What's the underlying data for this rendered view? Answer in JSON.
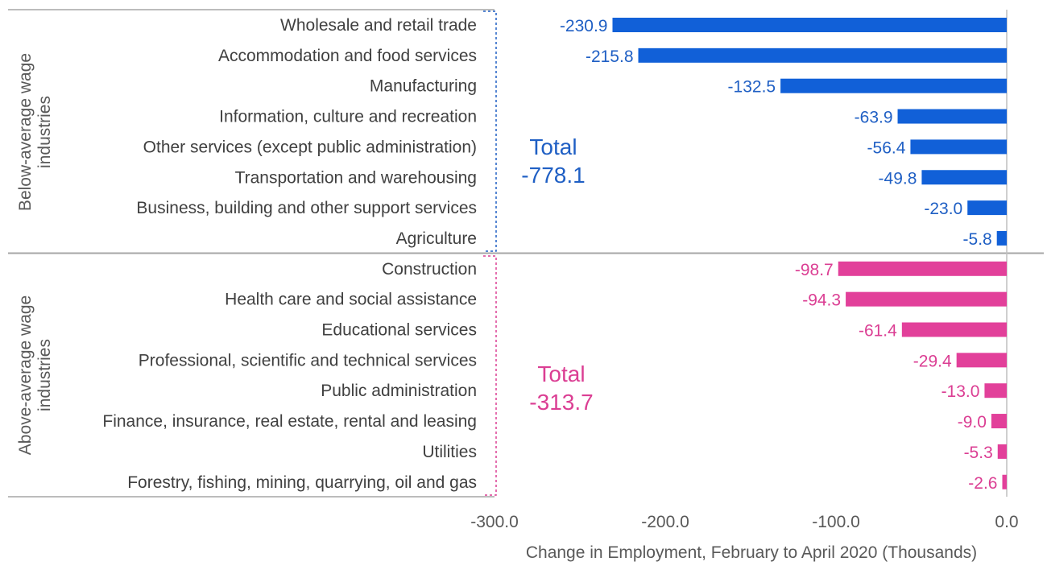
{
  "chart_data": {
    "type": "bar",
    "orientation": "horizontal",
    "xlabel": "Change in Employment, February to April 2020 (Thousands)",
    "xlim": [
      -300,
      0
    ],
    "xticks": [
      "-300.0",
      "-200.0",
      "-100.0",
      "0.0"
    ],
    "xtick_values": [
      -300,
      -200,
      -100,
      0
    ],
    "grid": false,
    "colors": {
      "below": "#1160D8",
      "above": "#E2409A",
      "text_below": "#1F5FC4",
      "text_above": "#DB3E93",
      "separator": "#A6A6A6",
      "zero_line": "#BFBFBF"
    },
    "groups": [
      {
        "label_line1": "Below-average wage",
        "label_line2": "industries",
        "total_word": "Total",
        "total_value": "-778.1",
        "categories": [
          "Wholesale and retail trade",
          "Accommodation and food services",
          "Manufacturing",
          "Information, culture and recreation",
          "Other services (except public administration)",
          "Transportation and warehousing",
          "Business, building and other support services",
          "Agriculture"
        ],
        "values": [
          -230.9,
          -215.8,
          -132.5,
          -63.9,
          -56.4,
          -49.8,
          -23.0,
          -5.8
        ],
        "value_labels": [
          "-230.9",
          "-215.8",
          "-132.5",
          "-63.9",
          "-56.4",
          "-49.8",
          "-23.0",
          "-5.8"
        ]
      },
      {
        "label_line1": "Above-average wage",
        "label_line2": "industries",
        "total_word": "Total",
        "total_value": "-313.7",
        "categories": [
          "Construction",
          "Health care and social assistance",
          "Educational services",
          "Professional, scientific and technical services",
          "Public administration",
          "Finance, insurance, real estate, rental and leasing",
          "Utilities",
          "Forestry, fishing, mining, quarrying, oil and gas"
        ],
        "values": [
          -98.7,
          -94.3,
          -61.4,
          -29.4,
          -13.0,
          -9.0,
          -5.3,
          -2.6
        ],
        "value_labels": [
          "-98.7",
          "-94.3",
          "-61.4",
          "-29.4",
          "-13.0",
          "-9.0",
          "-5.3",
          "-2.6"
        ]
      }
    ]
  }
}
